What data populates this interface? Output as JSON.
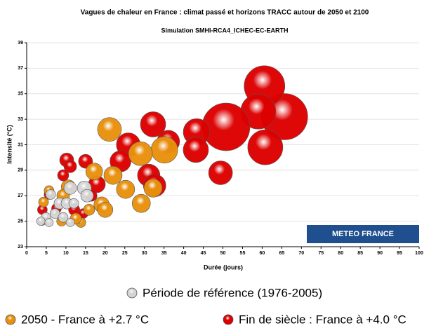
{
  "chart_data": {
    "type": "bubble",
    "title": "Vagues de chaleur en France : climat passé et horizons TRACC autour de 2050 et 2100",
    "subtitle": "Simulation SMHI-RCA4_ICHEC-EC-EARTH",
    "x_label": "Durée (jours)",
    "y_label": "Intensité (°C)",
    "watermark": "METEO FRANCE",
    "xlim": [
      0,
      100
    ],
    "xticks": [
      0,
      5,
      10,
      15,
      20,
      25,
      30,
      35,
      40,
      45,
      50,
      55,
      60,
      65,
      70,
      75,
      80,
      85,
      90,
      95,
      100
    ],
    "ylim": [
      23,
      39
    ],
    "yticks": [
      23,
      25,
      27,
      29,
      31,
      33,
      35,
      37,
      39
    ],
    "grid": true,
    "legend": "bottom",
    "series": [
      {
        "name": "Période de référence (1976-2005)",
        "color": "#d4d4d4",
        "x": [
          14.7,
          15.4,
          11.1,
          8.4,
          10.2,
          6.1,
          7.2,
          4.9,
          3.6,
          9.3,
          12,
          5.7,
          11.1
        ],
        "values": [
          27.6,
          27,
          27.6,
          26.4,
          26.4,
          27.1,
          25.6,
          25.3,
          25,
          25.3,
          26.4,
          24.9,
          24.9
        ],
        "sizes": [
          10,
          9,
          9,
          8,
          8,
          7,
          7,
          7,
          6,
          7,
          7,
          6,
          6
        ]
      },
      {
        "name": "2050 - France à +2.7 °C",
        "color": "#e8900c",
        "x": [
          21.1,
          35.1,
          29,
          22,
          25.2,
          32.2,
          29.2,
          17.2,
          19.1,
          20,
          15.9,
          13.8,
          10.6,
          9.3,
          5.7,
          4.3,
          3.9,
          8.9,
          12.5
        ],
        "values": [
          32.2,
          30.6,
          30.3,
          28.6,
          27.5,
          27.6,
          26.4,
          28.9,
          26.3,
          25.9,
          25.9,
          24.9,
          27.7,
          27,
          27.4,
          26.5,
          25,
          25,
          25.2
        ],
        "sizes": [
          17,
          19,
          17,
          13,
          13,
          13,
          13,
          12,
          11,
          11,
          8,
          7,
          10,
          9,
          7,
          7,
          6,
          7,
          8
        ]
      },
      {
        "name": "Fin de siècle : France à +4.0 °C",
        "color": "#dd0000",
        "x": [
          65.7,
          60.6,
          59,
          50.8,
          60.8,
          43.3,
          43.1,
          49.4,
          32.2,
          36.1,
          31.1,
          32.6,
          25.9,
          23.9,
          17.9,
          15,
          10.2,
          11.1,
          9.3,
          16.5,
          4,
          7.6,
          12.1,
          14.4,
          5.7
        ],
        "values": [
          33.2,
          35.6,
          33.6,
          32.4,
          30.8,
          32,
          30.6,
          28.8,
          32.6,
          31.25,
          28.6,
          27.8,
          31,
          29.7,
          27.9,
          29.7,
          29.8,
          29.3,
          28.6,
          27,
          25.9,
          26,
          25.9,
          25.6,
          27.1
        ],
        "sizes": [
          33,
          29,
          25,
          34,
          25,
          19,
          18,
          17,
          18,
          16,
          16,
          16,
          17,
          15,
          12,
          10,
          10,
          9,
          8,
          8,
          7,
          7,
          8,
          7,
          7
        ]
      }
    ]
  }
}
